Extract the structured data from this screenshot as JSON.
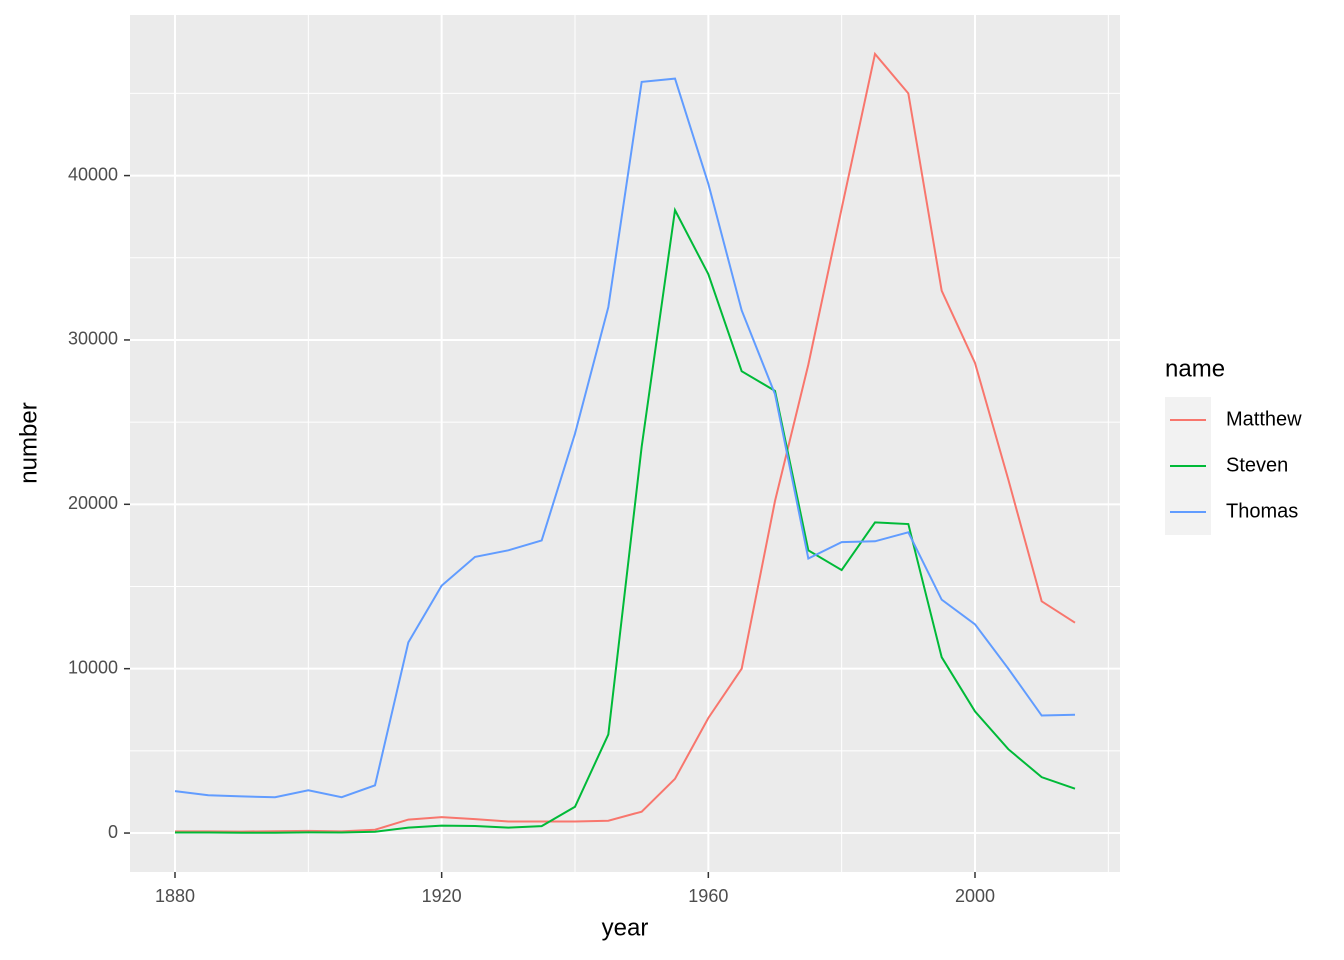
{
  "chart_data": {
    "type": "line",
    "x_label": "year",
    "y_label": "number",
    "legend_title": "name",
    "legend": "right",
    "grid": true,
    "x": [
      1880,
      1885,
      1890,
      1895,
      1900,
      1905,
      1910,
      1915,
      1920,
      1925,
      1930,
      1935,
      1940,
      1945,
      1950,
      1955,
      1960,
      1965,
      1970,
      1975,
      1980,
      1985,
      1990,
      1995,
      2000,
      2005,
      2010,
      2015
    ],
    "series": [
      {
        "name": "Matthew",
        "color": "#F8766D",
        "values": [
          100,
          100,
          90,
          110,
          130,
          100,
          200,
          820,
          970,
          850,
          700,
          700,
          700,
          750,
          1300,
          3300,
          7000,
          10000,
          20200,
          28500,
          38000,
          47400,
          45000,
          33000,
          28600,
          21500,
          14100,
          12800
        ]
      },
      {
        "name": "Steven",
        "color": "#00BA38",
        "values": [
          30,
          30,
          20,
          20,
          40,
          30,
          80,
          330,
          450,
          430,
          330,
          420,
          1600,
          6000,
          23500,
          37900,
          34000,
          28100,
          26900,
          17200,
          16000,
          18900,
          18800,
          10700,
          7400,
          5100,
          3400,
          2700
        ]
      },
      {
        "name": "Thomas",
        "color": "#619CFF",
        "values": [
          2550,
          2300,
          2230,
          2180,
          2600,
          2180,
          2900,
          11600,
          15050,
          16800,
          17200,
          17800,
          24300,
          32000,
          45700,
          45900,
          39500,
          31800,
          26700,
          16700,
          17700,
          17750,
          18300,
          14200,
          12700,
          10000,
          7150,
          7200
        ]
      }
    ],
    "xlim": [
      1873.25,
      2021.75
    ],
    "xticks": [
      1880,
      1920,
      1960,
      2000
    ],
    "ylim": [
      -2370,
      49770
    ],
    "yticks": [
      0,
      10000,
      20000,
      30000,
      40000
    ]
  }
}
